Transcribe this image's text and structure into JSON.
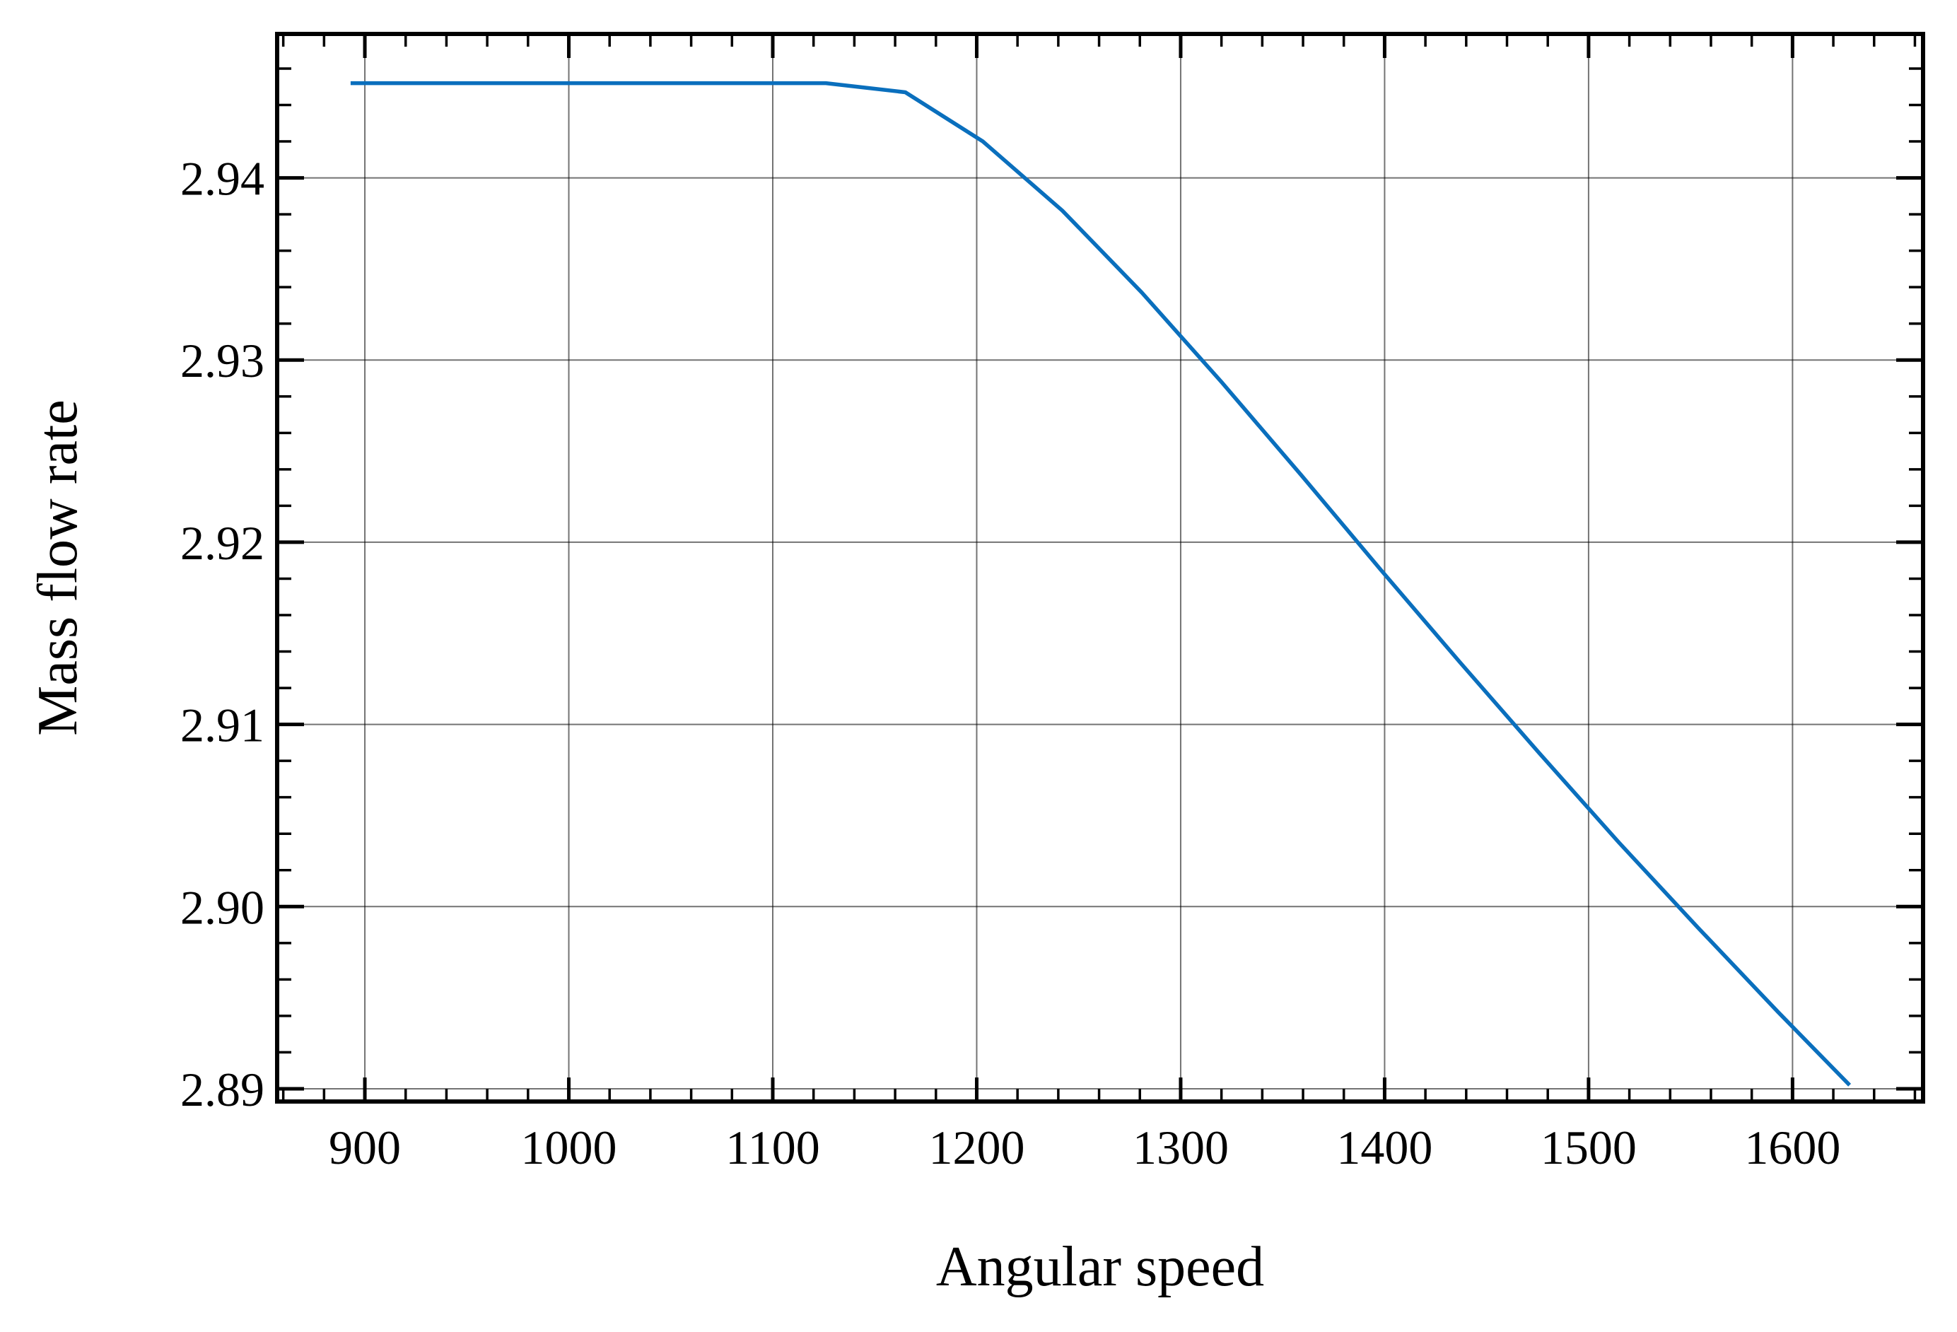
{
  "chart_data": {
    "type": "line",
    "xlabel": "Angular speed",
    "ylabel": "Mass flow rate",
    "xlim": [
      857,
      1664
    ],
    "ylim": [
      2.8893,
      2.9479
    ],
    "x_ticks": [
      900,
      1000,
      1100,
      1200,
      1300,
      1400,
      1500,
      1600
    ],
    "x_tick_labels": [
      "900",
      "1000",
      "1100",
      "1200",
      "1300",
      "1400",
      "1500",
      "1600"
    ],
    "x_minor_step": 20,
    "y_ticks": [
      2.89,
      2.9,
      2.91,
      2.92,
      2.93,
      2.94
    ],
    "y_tick_labels": [
      "2.89",
      "2.90",
      "2.91",
      "2.92",
      "2.93",
      "2.94"
    ],
    "y_minor_step": 0.002,
    "grid": true,
    "line_color": "#0a6fbd",
    "series": [
      {
        "x": [
          893,
          930,
          1000,
          1050,
          1100,
          1126,
          1165,
          1203,
          1242,
          1281,
          1320,
          1359,
          1398,
          1437,
          1476,
          1515,
          1554,
          1593,
          1628
        ],
        "y": [
          2.9452,
          2.9452,
          2.9452,
          2.9452,
          2.9452,
          2.9452,
          2.9447,
          2.942,
          2.9382,
          2.9337,
          2.9288,
          2.9237,
          2.9185,
          2.9134,
          2.9084,
          2.9035,
          2.8988,
          2.8942,
          2.8902
        ]
      }
    ]
  }
}
